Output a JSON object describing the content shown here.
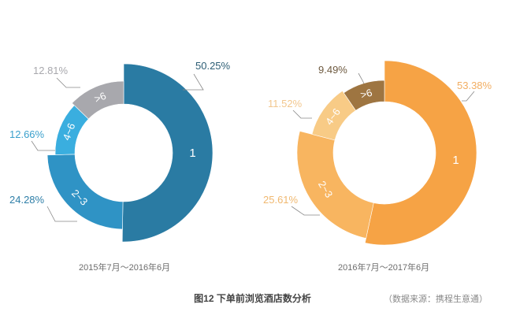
{
  "caption": "图12 下单前浏览酒店数分析",
  "source": "（数据来源：携程生意通）",
  "chart_data": [
    {
      "type": "pie",
      "variant": "variable-radius donut",
      "subtitle": "2015年7月～2016年6月",
      "categories": [
        "1",
        "2~3",
        "4~6",
        ">6"
      ],
      "values": [
        50.25,
        24.28,
        12.66,
        12.81
      ],
      "data_labels": [
        "50.25%",
        "24.28%",
        "12.66%",
        "12.81%"
      ],
      "colors": [
        "#2A7BA3",
        "#2F93C5",
        "#3AAEDF",
        "#A8A8AD"
      ],
      "label_colors": [
        "#2D5E75",
        "#2F7FA8",
        "#3AA0CC",
        "#A8A8AD"
      ]
    },
    {
      "type": "pie",
      "variant": "variable-radius donut",
      "subtitle": "2016年7月～2017年6月",
      "categories": [
        "1",
        "2~3",
        "4~6",
        ">6"
      ],
      "values": [
        53.38,
        25.61,
        11.52,
        9.49
      ],
      "data_labels": [
        "53.38%",
        "25.61%",
        "11.52%",
        "9.49%"
      ],
      "colors": [
        "#F6A345",
        "#F8B560",
        "#F8CB86",
        "#9E7541"
      ],
      "label_colors": [
        "#F2AE62",
        "#F0B870",
        "#F2C78E",
        "#6E5A40"
      ]
    }
  ]
}
